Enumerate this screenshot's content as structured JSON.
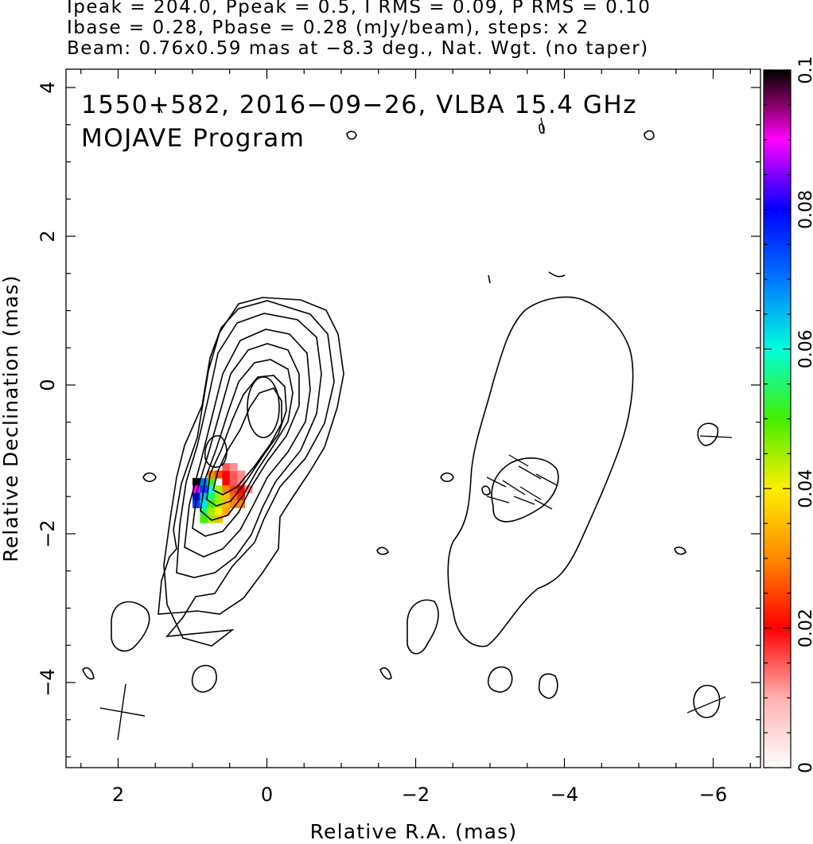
{
  "header": {
    "line1": "Ipeak = 204.0, Ppeak = 0.5, I RMS = 0.09, P RMS = 0.10",
    "line2": "Ibase = 0.28, Pbase = 0.28 (mJy/beam), steps: x 2",
    "line3": "Beam: 0.76x0.59 mas at −8.3 deg., Nat. Wgt. (no taper)"
  },
  "chart_data": {
    "type": "heatmap",
    "title": "1550+582, 2016−09−26, VLBA 15.4 GHz",
    "subtitle": "MOJAVE Program",
    "xlabel": "Relative R.A. (mas)",
    "ylabel": "Relative Declination (mas)",
    "xlim": [
      2.7,
      -6.8
    ],
    "ylim": [
      -5.2,
      4.2
    ],
    "xticks": [
      2,
      0,
      -2,
      -4,
      -6
    ],
    "xtick_labels": [
      "2",
      "0",
      "−2",
      "−4",
      "−6"
    ],
    "yticks": [
      -4,
      -2,
      0,
      2,
      4
    ],
    "ytick_labels": [
      "−4",
      "−2",
      "0",
      "2",
      "4"
    ],
    "colorbar": {
      "range": [
        0,
        0.1
      ],
      "ticks": [
        0,
        0.02,
        0.04,
        0.06,
        0.08,
        0.1
      ],
      "tick_labels": [
        "0",
        "0.02",
        "0.04",
        "0.06",
        "0.08",
        "0.1"
      ]
    },
    "contour_levels_mJy_per_beam": [
      0.28,
      0.56,
      1.12,
      2.24,
      4.48,
      8.96,
      17.92,
      35.84,
      71.68,
      143.36
    ],
    "core_position": [
      0.0,
      -0.3
    ],
    "polarized_pixels": [
      [
        0.95,
        -1.3,
        0.1
      ],
      [
        0.85,
        -1.3,
        0.07
      ],
      [
        0.75,
        -1.3,
        0.05
      ],
      [
        0.55,
        -1.3,
        0.02
      ],
      [
        0.45,
        -1.3,
        0.015
      ],
      [
        0.35,
        -1.3,
        0.012
      ],
      [
        0.95,
        -1.4,
        0.09
      ],
      [
        0.85,
        -1.4,
        0.075
      ],
      [
        0.75,
        -1.4,
        0.06
      ],
      [
        0.65,
        -1.4,
        0.045
      ],
      [
        0.55,
        -1.4,
        0.03
      ],
      [
        0.45,
        -1.4,
        0.025
      ],
      [
        0.35,
        -1.4,
        0.02
      ],
      [
        0.25,
        -1.4,
        0.012
      ],
      [
        0.95,
        -1.5,
        0.08
      ],
      [
        0.85,
        -1.5,
        0.065
      ],
      [
        0.75,
        -1.5,
        0.055
      ],
      [
        0.65,
        -1.5,
        0.045
      ],
      [
        0.55,
        -1.5,
        0.035
      ],
      [
        0.45,
        -1.5,
        0.028
      ],
      [
        0.35,
        -1.5,
        0.022
      ],
      [
        0.95,
        -1.6,
        0.075
      ],
      [
        0.85,
        -1.6,
        0.062
      ],
      [
        0.75,
        -1.6,
        0.05
      ],
      [
        0.65,
        -1.6,
        0.045
      ],
      [
        0.55,
        -1.6,
        0.035
      ],
      [
        0.45,
        -1.6,
        0.03
      ],
      [
        0.35,
        -1.6,
        0.03
      ],
      [
        0.85,
        -1.7,
        0.055
      ],
      [
        0.75,
        -1.7,
        0.045
      ],
      [
        0.65,
        -1.7,
        0.04
      ],
      [
        0.55,
        -1.7,
        0.033
      ],
      [
        0.85,
        -1.8,
        0.05
      ],
      [
        0.75,
        -1.8,
        0.045
      ],
      [
        0.65,
        -1.8,
        0.035
      ],
      [
        0.75,
        -1.2,
        0.03
      ],
      [
        0.65,
        -1.2,
        0.025
      ],
      [
        0.55,
        -1.2,
        0.02
      ],
      [
        0.45,
        -1.2,
        0.015
      ],
      [
        0.35,
        -1.2,
        0.012
      ],
      [
        0.55,
        -1.1,
        0.015
      ],
      [
        0.45,
        -1.1,
        0.012
      ]
    ]
  }
}
